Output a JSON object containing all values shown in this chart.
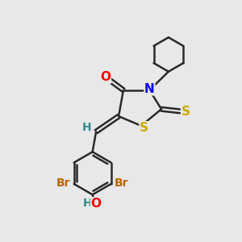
{
  "background_color": "#e8e8e8",
  "bond_color": "#2a2a2a",
  "bond_width": 1.8,
  "atom_colors": {
    "O": "#ff0000",
    "N": "#0000ee",
    "S_thione": "#ccaa00",
    "S_ring": "#ccaa00",
    "Br": "#bb6600",
    "H": "#3a8a8a",
    "C": "#2a2a2a"
  },
  "font_size_atom": 11,
  "font_size_br": 10,
  "font_size_h": 10
}
